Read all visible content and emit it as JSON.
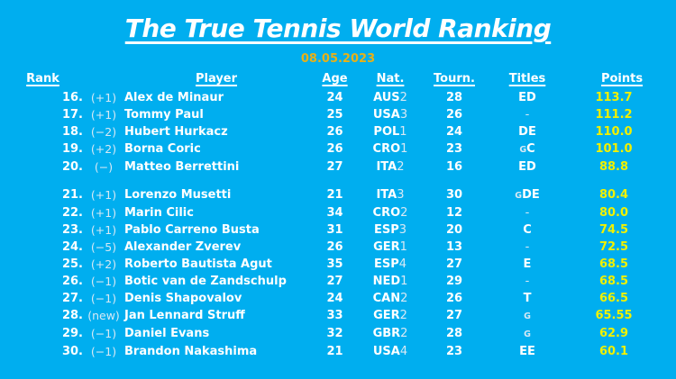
{
  "title": "The True Tennis World Ranking",
  "date": "08.05.2023",
  "colors": {
    "background": "#00AEEF",
    "text_primary": "#FFFFFF",
    "text_secondary": "#D8E9F5",
    "points": "#F1F100",
    "date": "#E7B118"
  },
  "columns": {
    "rank": "Rank",
    "player": "Player",
    "age": "Age",
    "nat": "Nat.",
    "tourn": "Tourn.",
    "titles": "Titles",
    "points": "Points"
  },
  "rows": [
    {
      "rank": "16.",
      "move": "(+1)",
      "player": "Alex de Minaur",
      "age": "24",
      "nat": "AUS",
      "nat_num": "2",
      "tourn": "28",
      "titles": [
        {
          "t": "ED",
          "style": "regular"
        }
      ],
      "points": "113.7",
      "gap_before": false
    },
    {
      "rank": "17.",
      "move": "(+1)",
      "player": "Tommy Paul",
      "age": "25",
      "nat": "USA",
      "nat_num": "3",
      "tourn": "26",
      "titles": [
        {
          "t": "-",
          "style": "dash"
        }
      ],
      "points": "111.2",
      "gap_before": false
    },
    {
      "rank": "18.",
      "move": "(−2)",
      "player": "Hubert Hurkacz",
      "age": "26",
      "nat": "POL",
      "nat_num": "1",
      "tourn": "24",
      "titles": [
        {
          "t": "DE",
          "style": "regular"
        }
      ],
      "points": "110.0",
      "gap_before": false
    },
    {
      "rank": "19.",
      "move": "(+2)",
      "player": "Borna Coric",
      "age": "26",
      "nat": "CRO",
      "nat_num": "1",
      "tourn": "23",
      "titles": [
        {
          "t": "G",
          "style": "small"
        },
        {
          "t": "C",
          "style": "regular"
        }
      ],
      "points": "101.0",
      "gap_before": false
    },
    {
      "rank": "20.",
      "move": "(−)",
      "player": "Matteo Berrettini",
      "age": "27",
      "nat": "ITA",
      "nat_num": "2",
      "tourn": "16",
      "titles": [
        {
          "t": "ED",
          "style": "regular"
        }
      ],
      "points": "88.8",
      "gap_before": false
    },
    {
      "rank": "21.",
      "move": "(+1)",
      "player": "Lorenzo Musetti",
      "age": "21",
      "nat": "ITA",
      "nat_num": "3",
      "tourn": "30",
      "titles": [
        {
          "t": "G",
          "style": "small"
        },
        {
          "t": "DE",
          "style": "regular"
        }
      ],
      "points": "80.4",
      "gap_before": true
    },
    {
      "rank": "22.",
      "move": "(+1)",
      "player": "Marin Cilic",
      "age": "34",
      "nat": "CRO",
      "nat_num": "2",
      "tourn": "12",
      "titles": [
        {
          "t": "-",
          "style": "dash"
        }
      ],
      "points": "80.0",
      "gap_before": false
    },
    {
      "rank": "23.",
      "move": "(+1)",
      "player": "Pablo Carreno Busta",
      "age": "31",
      "nat": "ESP",
      "nat_num": "3",
      "tourn": "20",
      "titles": [
        {
          "t": "C",
          "style": "regular"
        }
      ],
      "points": "74.5",
      "gap_before": false
    },
    {
      "rank": "24.",
      "move": "(−5)",
      "player": "Alexander Zverev",
      "age": "26",
      "nat": "GER",
      "nat_num": "1",
      "tourn": "13",
      "titles": [
        {
          "t": "-",
          "style": "dash"
        }
      ],
      "points": "72.5",
      "gap_before": false
    },
    {
      "rank": "25.",
      "move": "(+2)",
      "player": "Roberto Bautista Agut",
      "age": "35",
      "nat": "ESP",
      "nat_num": "4",
      "tourn": "27",
      "titles": [
        {
          "t": "E",
          "style": "regular"
        }
      ],
      "points": "68.5",
      "gap_before": false
    },
    {
      "rank": "26.",
      "move": "(−1)",
      "player": "Botic van de Zandschulp",
      "age": "27",
      "nat": "NED",
      "nat_num": "1",
      "tourn": "29",
      "titles": [
        {
          "t": "-",
          "style": "dash"
        }
      ],
      "points": "68.5",
      "gap_before": false
    },
    {
      "rank": "27.",
      "move": "(−1)",
      "player": "Denis Shapovalov",
      "age": "24",
      "nat": "CAN",
      "nat_num": "2",
      "tourn": "26",
      "titles": [
        {
          "t": "T",
          "style": "regular"
        }
      ],
      "points": "66.5",
      "gap_before": false
    },
    {
      "rank": "28.",
      "move": "(new)",
      "player": "Jan Lennard Struff",
      "age": "33",
      "nat": "GER",
      "nat_num": "2",
      "tourn": "27",
      "titles": [
        {
          "t": "G",
          "style": "small"
        }
      ],
      "points": "65.55",
      "gap_before": false
    },
    {
      "rank": "29.",
      "move": "(−1)",
      "player": "Daniel Evans",
      "age": "32",
      "nat": "GBR",
      "nat_num": "2",
      "tourn": "28",
      "titles": [
        {
          "t": "G",
          "style": "small"
        }
      ],
      "points": "62.9",
      "gap_before": false
    },
    {
      "rank": "30.",
      "move": "(−1)",
      "player": "Brandon Nakashima",
      "age": "21",
      "nat": "USA",
      "nat_num": "4",
      "tourn": "23",
      "titles": [
        {
          "t": "EE",
          "style": "regular"
        }
      ],
      "points": "60.1",
      "gap_before": false
    }
  ]
}
